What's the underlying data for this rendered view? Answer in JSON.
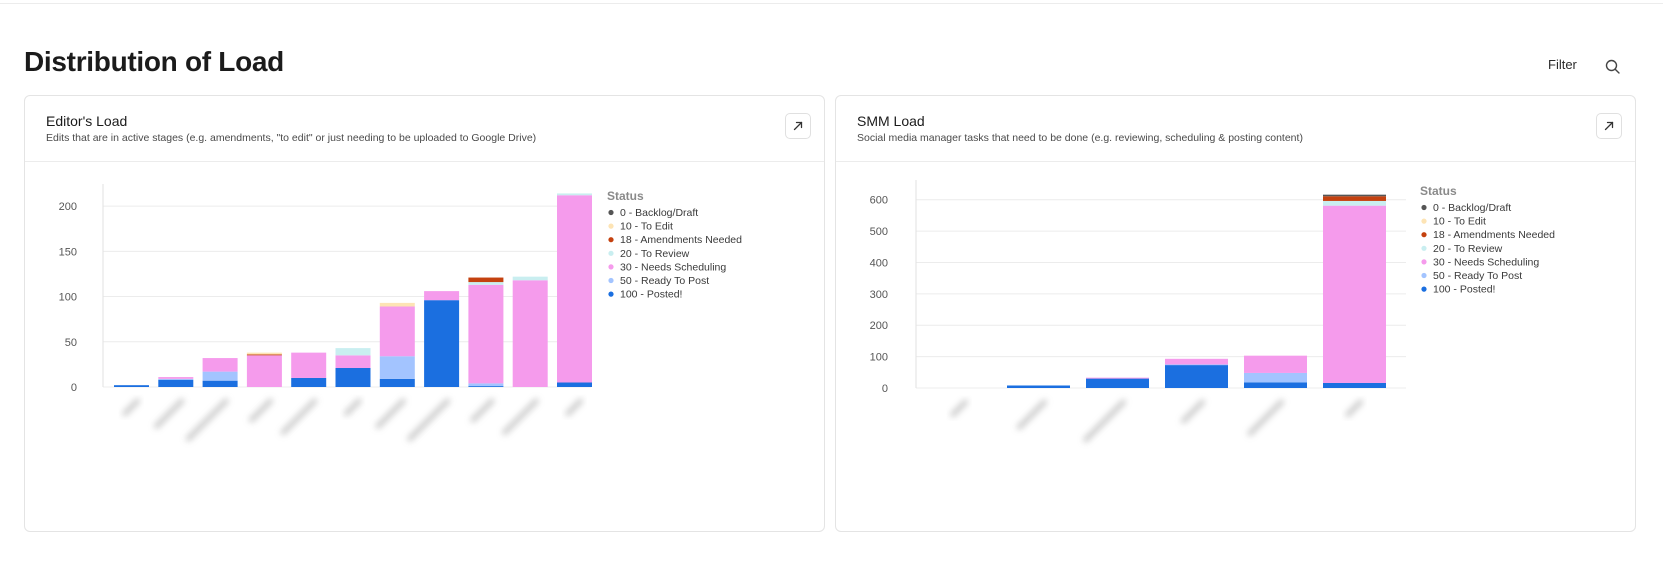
{
  "section": {
    "title": "Distribution of Load",
    "filter_label": "Filter"
  },
  "colors": {
    "status": [
      "#555555",
      "#fde4b5",
      "#c4410f",
      "#c9eef0",
      "#f59bec",
      "#a3c4ff",
      "#1b6fe0"
    ],
    "grid": "#ececec",
    "axis_text": "#555555"
  },
  "cards": [
    {
      "title": "Editor's Load",
      "description": "Edits that are in active stages (e.g. amendments, \"to edit\" or just needing to be uploaded to Google Drive)",
      "chart_data": {
        "type": "bar",
        "stacked": true,
        "categories": [
          "",
          "",
          "",
          "",
          "",
          "",
          "",
          "",
          "",
          "",
          ""
        ],
        "series": [
          {
            "name": "0 - Backlog/Draft",
            "values": [
              0,
              0,
              0,
              0,
              0,
              0,
              0,
              0,
              0,
              0,
              0
            ]
          },
          {
            "name": "10 - To Edit",
            "values": [
              0,
              0,
              0,
              2,
              0,
              0,
              4,
              0,
              0,
              0,
              0
            ]
          },
          {
            "name": "18 - Amendments Needed",
            "values": [
              0,
              0,
              0,
              1,
              0,
              0,
              0,
              0,
              5,
              0,
              0
            ]
          },
          {
            "name": "20 - To Review",
            "values": [
              0,
              0,
              0,
              0,
              0,
              8,
              0,
              0,
              3,
              4,
              2
            ]
          },
          {
            "name": "30 - Needs Scheduling",
            "values": [
              0,
              2,
              15,
              35,
              28,
              14,
              55,
              10,
              109,
              118,
              207
            ]
          },
          {
            "name": "50 - Ready To Post",
            "values": [
              0,
              1,
              10,
              0,
              0,
              0,
              25,
              0,
              3,
              0,
              0
            ]
          },
          {
            "name": "100 - Posted!",
            "values": [
              2,
              8,
              7,
              0,
              10,
              21,
              9,
              96,
              1,
              0,
              5
            ]
          }
        ],
        "ylim": [
          0,
          220
        ],
        "yticks": [
          0,
          50,
          100,
          150,
          200
        ],
        "legend_title": "Status",
        "legend_position": "right"
      }
    },
    {
      "title": "SMM Load",
      "description": "Social media manager tasks that need to be done (e.g. reviewing, scheduling & posting content)",
      "chart_data": {
        "type": "bar",
        "stacked": true,
        "categories": [
          "",
          "",
          "",
          "",
          "",
          ""
        ],
        "series": [
          {
            "name": "0 - Backlog/Draft",
            "values": [
              0,
              0,
              0,
              0,
              0,
              5
            ]
          },
          {
            "name": "10 - To Edit",
            "values": [
              0,
              0,
              0,
              0,
              0,
              0
            ]
          },
          {
            "name": "18 - Amendments Needed",
            "values": [
              0,
              0,
              0,
              0,
              0,
              15
            ]
          },
          {
            "name": "20 - To Review",
            "values": [
              0,
              0,
              0,
              0,
              0,
              15
            ]
          },
          {
            "name": "30 - Needs Scheduling",
            "values": [
              0,
              0,
              3,
              18,
              55,
              565
            ]
          },
          {
            "name": "50 - Ready To Post",
            "values": [
              0,
              0,
              0,
              2,
              30,
              0
            ]
          },
          {
            "name": "100 - Posted!",
            "values": [
              0,
              8,
              30,
              73,
              18,
              16
            ]
          }
        ],
        "ylim": [
          0,
          650
        ],
        "yticks": [
          0,
          100,
          200,
          300,
          400,
          500,
          600
        ],
        "legend_title": "Status",
        "legend_position": "right"
      }
    }
  ]
}
